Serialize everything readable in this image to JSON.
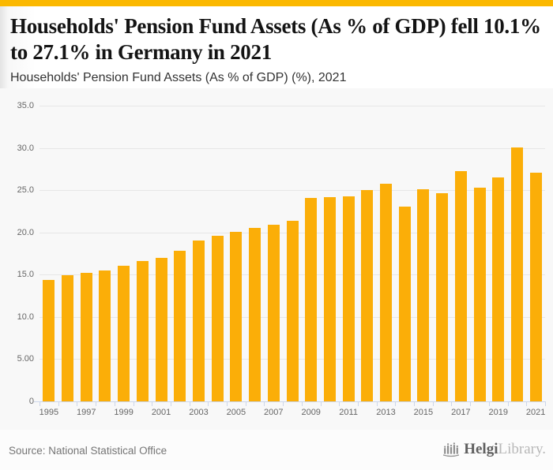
{
  "page": {
    "accent_color": "#fbb800",
    "header": {
      "title": "Households' Pension Fund Assets (As % of GDP) fell 10.1% to 27.1% in Germany in 2021",
      "subtitle": "Households' Pension Fund Assets (As % of GDP) (%), 2021"
    },
    "footer": {
      "source": "Source: National Statistical Office",
      "logo_primary": "Helgi",
      "logo_secondary": "Library."
    }
  },
  "chart_data": {
    "type": "bar",
    "title": "Households' Pension Fund Assets (As % of GDP) fell 10.1% to 27.1% in Germany in 2021",
    "subtitle": "Households' Pension Fund Assets (As % of GDP) (%), 2021",
    "xlabel": "",
    "ylabel": "",
    "ylim": [
      0,
      35
    ],
    "grid": true,
    "legend_position": "none",
    "bar_color": "#fbae08",
    "categories": [
      "1995",
      "1996",
      "1997",
      "1998",
      "1999",
      "2000",
      "2001",
      "2002",
      "2003",
      "2004",
      "2005",
      "2006",
      "2007",
      "2008",
      "2009",
      "2010",
      "2011",
      "2012",
      "2013",
      "2014",
      "2015",
      "2016",
      "2017",
      "2018",
      "2019",
      "2020",
      "2021"
    ],
    "values": [
      14.4,
      14.9,
      15.2,
      15.5,
      16.1,
      16.6,
      17.0,
      17.8,
      19.0,
      19.6,
      20.1,
      20.5,
      20.9,
      21.4,
      24.1,
      24.2,
      24.3,
      25.0,
      25.8,
      23.1,
      25.1,
      24.6,
      27.3,
      25.3,
      26.5,
      30.1,
      27.1
    ],
    "yticks": [
      {
        "value": 0,
        "label": "0"
      },
      {
        "value": 5,
        "label": "5.00"
      },
      {
        "value": 10,
        "label": "10.0"
      },
      {
        "value": 15,
        "label": "15.0"
      },
      {
        "value": 20,
        "label": "20.0"
      },
      {
        "value": 25,
        "label": "25.0"
      },
      {
        "value": 30,
        "label": "30.0"
      },
      {
        "value": 35,
        "label": "35.0"
      }
    ],
    "xtick_labels": [
      "1995",
      "1997",
      "1999",
      "2001",
      "2003",
      "2005",
      "2007",
      "2009",
      "2011",
      "2013",
      "2015",
      "2017",
      "2019",
      "2021"
    ]
  }
}
